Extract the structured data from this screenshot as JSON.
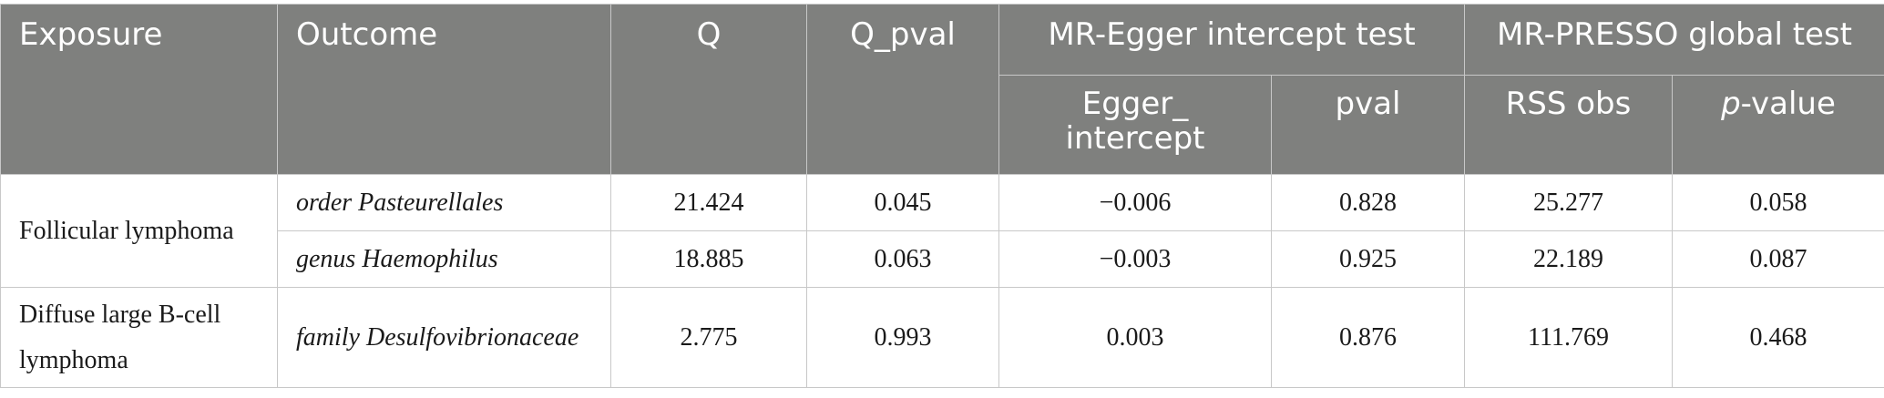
{
  "table": {
    "headers": {
      "exposure": "Exposure",
      "outcome": "Outcome",
      "q": "Q",
      "q_pval": "Q_pval",
      "egger_group": "MR-Egger intercept test",
      "presso_group": "MR-PRESSO global test",
      "egger_intercept": "Egger_ intercept",
      "pval": "pval",
      "rss_obs": "RSS obs",
      "p_value_italic": "p",
      "p_value_rest": "-value"
    },
    "rows": [
      {
        "exposure": "Follicular lymphoma",
        "outcome": "order Pasteurellales",
        "q": "21.424",
        "q_pval": "0.045",
        "egger_intercept": "−0.006",
        "pval": "0.828",
        "rss_obs": "25.277",
        "p_value": "0.058"
      },
      {
        "exposure": "Follicular lymphoma",
        "outcome": "genus Haemophilus",
        "q": "18.885",
        "q_pval": "0.063",
        "egger_intercept": "−0.003",
        "pval": "0.925",
        "rss_obs": "22.189",
        "p_value": "0.087"
      },
      {
        "exposure": "Diffuse large B-cell lymphoma",
        "outcome": "family Desulfovibrionaceae",
        "q": "2.775",
        "q_pval": "0.993",
        "egger_intercept": "0.003",
        "pval": "0.876",
        "rss_obs": "111.769",
        "p_value": "0.468"
      }
    ]
  }
}
